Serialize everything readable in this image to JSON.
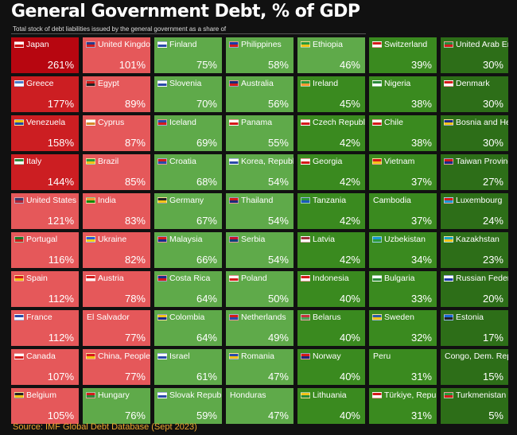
{
  "title": "General Government Debt, % of GDP",
  "subtitle": "Total stock of debt liabilities issued by the general government as a share of",
  "source": "Source: IMF Global Debt Database (Sept 2023)",
  "colors": {
    "dark_red": "#b70610",
    "red": "#cc1e22",
    "pink": "#e5585a",
    "light_green": "#5faa4a",
    "green": "#3a8a1f",
    "dark_green": "#2d6e18"
  },
  "chart_data": {
    "type": "table",
    "unit": "%",
    "columns": [
      [
        {
          "country": "Japan",
          "value": 261,
          "color": "dark_red",
          "flag": [
            "#ffffff",
            "#cc0000"
          ]
        },
        {
          "country": "Greece",
          "value": 177,
          "color": "red",
          "flag": [
            "#4a78c8",
            "#ffffff"
          ]
        },
        {
          "country": "Venezuela",
          "value": 158,
          "color": "red",
          "flag": [
            "#f1c40f",
            "#1f4aa8"
          ]
        },
        {
          "country": "Italy",
          "value": 144,
          "color": "red",
          "flag": [
            "#2c8a3a",
            "#ffffff"
          ]
        },
        {
          "country": "United States",
          "value": 121,
          "color": "pink",
          "flag": [
            "#3c3b6e",
            "#b22234"
          ]
        },
        {
          "country": "Portugal",
          "value": 116,
          "color": "pink",
          "flag": [
            "#1a7a2a",
            "#d41a1a"
          ]
        },
        {
          "country": "Spain",
          "value": 112,
          "color": "pink",
          "flag": [
            "#d41a1a",
            "#f3c318"
          ]
        },
        {
          "country": "France",
          "value": 112,
          "color": "pink",
          "flag": [
            "#2a4aa8",
            "#ffffff"
          ]
        },
        {
          "country": "Canada",
          "value": 107,
          "color": "pink",
          "flag": [
            "#ffffff",
            "#d41a1a"
          ]
        },
        {
          "country": "Belgium",
          "value": 105,
          "color": "pink",
          "flag": [
            "#222222",
            "#f3c318"
          ]
        }
      ],
      [
        {
          "country": "United Kingdom",
          "value": 101,
          "color": "pink",
          "flag": [
            "#2a3a8a",
            "#d41a1a"
          ]
        },
        {
          "country": "Egypt",
          "value": 89,
          "color": "pink",
          "flag": [
            "#d41a1a",
            "#222222"
          ]
        },
        {
          "country": "Cyprus",
          "value": 87,
          "color": "pink",
          "flag": [
            "#ffffff",
            "#d4882a"
          ]
        },
        {
          "country": "Brazil",
          "value": 85,
          "color": "pink",
          "flag": [
            "#2a9a3a",
            "#f3c318"
          ]
        },
        {
          "country": "India",
          "value": 83,
          "color": "pink",
          "flag": [
            "#ff9933",
            "#138808"
          ]
        },
        {
          "country": "Ukraine",
          "value": 82,
          "color": "pink",
          "flag": [
            "#2a5ad8",
            "#f3d318"
          ]
        },
        {
          "country": "Austria",
          "value": 78,
          "color": "pink",
          "flag": [
            "#d41a1a",
            "#ffffff"
          ]
        },
        {
          "country": "El Salvador",
          "value": 77,
          "color": "pink",
          "flag": null
        },
        {
          "country": "China, People's Republic of",
          "value": 77,
          "color": "pink",
          "flag": [
            "#d41a1a",
            "#f3c318"
          ]
        },
        {
          "country": "Hungary",
          "value": 76,
          "color": "light_green",
          "flag": [
            "#d41a1a",
            "#2a8a3a"
          ]
        }
      ],
      [
        {
          "country": "Finland",
          "value": 75,
          "color": "light_green",
          "flag": [
            "#ffffff",
            "#2a4aa8"
          ]
        },
        {
          "country": "Slovenia",
          "value": 70,
          "color": "light_green",
          "flag": [
            "#ffffff",
            "#2a4aa8"
          ]
        },
        {
          "country": "Iceland",
          "value": 69,
          "color": "light_green",
          "flag": [
            "#2a4aa8",
            "#d41a1a"
          ]
        },
        {
          "country": "Croatia",
          "value": 68,
          "color": "light_green",
          "flag": [
            "#d41a1a",
            "#2a4aa8"
          ]
        },
        {
          "country": "Germany",
          "value": 67,
          "color": "light_green",
          "flag": [
            "#222222",
            "#f3c318"
          ]
        },
        {
          "country": "Malaysia",
          "value": 66,
          "color": "light_green",
          "flag": [
            "#d41a1a",
            "#1a2a8a"
          ]
        },
        {
          "country": "Costa Rica",
          "value": 64,
          "color": "light_green",
          "flag": [
            "#1a2a8a",
            "#d41a1a"
          ]
        },
        {
          "country": "Colombia",
          "value": 64,
          "color": "light_green",
          "flag": [
            "#f3c318",
            "#1a2a8a"
          ]
        },
        {
          "country": "Israel",
          "value": 61,
          "color": "light_green",
          "flag": [
            "#ffffff",
            "#2a4aa8"
          ]
        },
        {
          "country": "Slovak Republic",
          "value": 59,
          "color": "light_green",
          "flag": [
            "#ffffff",
            "#2a4aa8"
          ]
        }
      ],
      [
        {
          "country": "Philippines",
          "value": 58,
          "color": "light_green",
          "flag": [
            "#1a3aa8",
            "#d41a1a"
          ]
        },
        {
          "country": "Australia",
          "value": 56,
          "color": "light_green",
          "flag": [
            "#1a2a7a",
            "#d41a1a"
          ]
        },
        {
          "country": "Panama",
          "value": 55,
          "color": "light_green",
          "flag": [
            "#ffffff",
            "#d41a1a"
          ]
        },
        {
          "country": "Korea, Republic of",
          "value": 54,
          "color": "light_green",
          "flag": [
            "#ffffff",
            "#2a4aa8"
          ]
        },
        {
          "country": "Thailand",
          "value": 54,
          "color": "light_green",
          "flag": [
            "#d41a1a",
            "#1a2a7a"
          ]
        },
        {
          "country": "Serbia",
          "value": 54,
          "color": "light_green",
          "flag": [
            "#c8102e",
            "#0c4076"
          ]
        },
        {
          "country": "Poland",
          "value": 50,
          "color": "light_green",
          "flag": [
            "#ffffff",
            "#d41a1a"
          ]
        },
        {
          "country": "Netherlands",
          "value": 49,
          "color": "light_green",
          "flag": [
            "#d41a1a",
            "#2a4aa8"
          ]
        },
        {
          "country": "Romania",
          "value": 47,
          "color": "light_green",
          "flag": [
            "#2a4aa8",
            "#f3c318"
          ]
        },
        {
          "country": "Honduras",
          "value": 47,
          "color": "light_green",
          "flag": null
        }
      ],
      [
        {
          "country": "Ethiopia",
          "value": 46,
          "color": "light_green",
          "flag": [
            "#2a9a3a",
            "#f3c318"
          ]
        },
        {
          "country": "Ireland",
          "value": 45,
          "color": "green",
          "flag": [
            "#2a9a3a",
            "#ff9933"
          ]
        },
        {
          "country": "Czech Republic",
          "value": 42,
          "color": "green",
          "flag": [
            "#ffffff",
            "#d41a1a"
          ]
        },
        {
          "country": "Georgia",
          "value": 42,
          "color": "green",
          "flag": [
            "#ffffff",
            "#d41a1a"
          ]
        },
        {
          "country": "Tanzania",
          "value": 42,
          "color": "green",
          "flag": [
            "#2a9a3a",
            "#1a5ab8"
          ]
        },
        {
          "country": "Latvia",
          "value": 42,
          "color": "green",
          "flag": [
            "#9e3039",
            "#ffffff"
          ]
        },
        {
          "country": "Indonesia",
          "value": 40,
          "color": "green",
          "flag": [
            "#d41a1a",
            "#ffffff"
          ]
        },
        {
          "country": "Belarus",
          "value": 40,
          "color": "green",
          "flag": [
            "#c8313e",
            "#4aa657"
          ]
        },
        {
          "country": "Norway",
          "value": 40,
          "color": "green",
          "flag": [
            "#d41a1a",
            "#1a2a7a"
          ]
        },
        {
          "country": "Lithuania",
          "value": 40,
          "color": "green",
          "flag": [
            "#f3c318",
            "#2a8a3a"
          ]
        }
      ],
      [
        {
          "country": "Switzerland",
          "value": 39,
          "color": "green",
          "flag": [
            "#d41a1a",
            "#ffffff"
          ]
        },
        {
          "country": "Nigeria",
          "value": 38,
          "color": "green",
          "flag": [
            "#2a8a3a",
            "#ffffff"
          ]
        },
        {
          "country": "Chile",
          "value": 38,
          "color": "green",
          "flag": [
            "#ffffff",
            "#d41a1a"
          ]
        },
        {
          "country": "Vietnam",
          "value": 37,
          "color": "green",
          "flag": [
            "#d41a1a",
            "#f3c318"
          ]
        },
        {
          "country": "Cambodia",
          "value": 37,
          "color": "green",
          "flag": null
        },
        {
          "country": "Uzbekistan",
          "value": 34,
          "color": "green",
          "flag": [
            "#1a9ad8",
            "#2a9a3a"
          ]
        },
        {
          "country": "Bulgaria",
          "value": 33,
          "color": "green",
          "flag": [
            "#ffffff",
            "#2a8a3a"
          ]
        },
        {
          "country": "Sweden",
          "value": 32,
          "color": "green",
          "flag": [
            "#2a5aa8",
            "#f3c318"
          ]
        },
        {
          "country": "Peru",
          "value": 31,
          "color": "green",
          "flag": null
        },
        {
          "country": "Türkiye, Republic of",
          "value": 31,
          "color": "green",
          "flag": [
            "#d41a1a",
            "#ffffff"
          ]
        }
      ],
      [
        {
          "country": "United Arab Emirates",
          "value": 30,
          "color": "dark_green",
          "flag": [
            "#2a8a3a",
            "#d41a1a"
          ]
        },
        {
          "country": "Denmark",
          "value": 30,
          "color": "dark_green",
          "flag": [
            "#d41a1a",
            "#ffffff"
          ]
        },
        {
          "country": "Bosnia and Herzegovina",
          "value": 30,
          "color": "dark_green",
          "flag": [
            "#1a2a8a",
            "#f3c318"
          ]
        },
        {
          "country": "Taiwan Province of China",
          "value": 27,
          "color": "dark_green",
          "flag": [
            "#d41a1a",
            "#1a2a8a"
          ]
        },
        {
          "country": "Luxembourg",
          "value": 24,
          "color": "dark_green",
          "flag": [
            "#d41a1a",
            "#1a9ad8"
          ]
        },
        {
          "country": "Kazakhstan",
          "value": 23,
          "color": "dark_green",
          "flag": [
            "#1aa8c8",
            "#f3c318"
          ]
        },
        {
          "country": "Russian Federation",
          "value": 20,
          "color": "dark_green",
          "flag": [
            "#ffffff",
            "#1a3aa8"
          ]
        },
        {
          "country": "Estonia",
          "value": 17,
          "color": "dark_green",
          "flag": [
            "#1a6ad8",
            "#222222"
          ]
        },
        {
          "country": "Congo, Dem. Rep. of the",
          "value": 15,
          "color": "dark_green",
          "flag": null
        },
        {
          "country": "Turkmenistan",
          "value": 5,
          "color": "dark_green",
          "flag": [
            "#2a9a3a",
            "#d41a1a"
          ]
        }
      ]
    ]
  }
}
